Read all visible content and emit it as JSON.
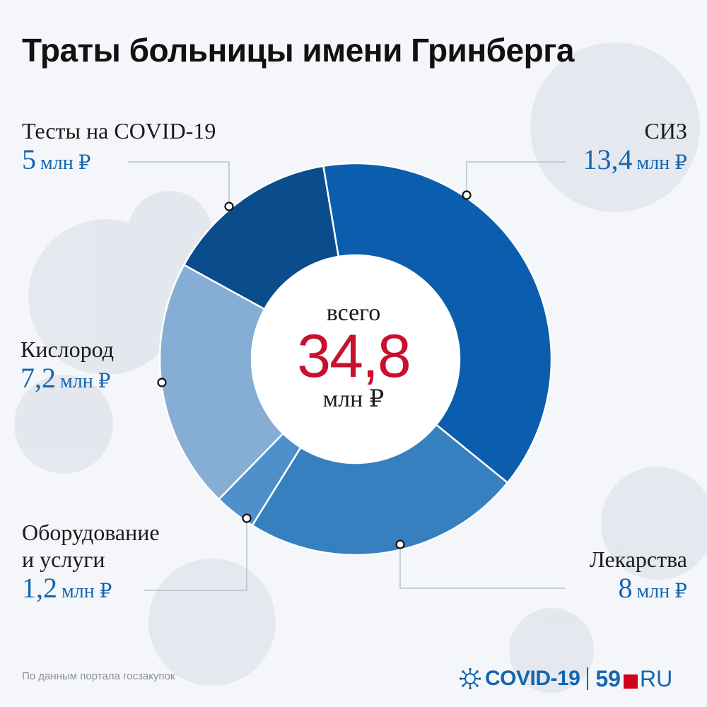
{
  "title": "Траты больницы имени Гринберга",
  "chart_data": {
    "type": "pie",
    "donut": true,
    "unit": "млн ₽",
    "center": {
      "pre": "всего",
      "total": "34,8",
      "unit": "млн ₽"
    },
    "slices": [
      {
        "label": "СИЗ",
        "value": 13.4,
        "display": "13,4",
        "color": "#0a5ead"
      },
      {
        "label": "Лекарства",
        "value": 8,
        "display": "8",
        "color": "#3780c0"
      },
      {
        "label": "Оборудование и услуги",
        "label_lines": [
          "Оборудование",
          "и услуги"
        ],
        "value": 1.2,
        "display": "1,2",
        "color": "#4f8fca"
      },
      {
        "label": "Кислород",
        "value": 7.2,
        "display": "7,2",
        "color": "#86aed4"
      },
      {
        "label": "Тесты на COVID-19",
        "value": 5,
        "display": "5",
        "color": "#0b4c8c"
      }
    ]
  },
  "source": "По данным портала госзакупок",
  "logo": {
    "brand": "COVID-19",
    "site_num": "59",
    "site_suffix": "RU",
    "virus_icon": "virus-icon"
  }
}
